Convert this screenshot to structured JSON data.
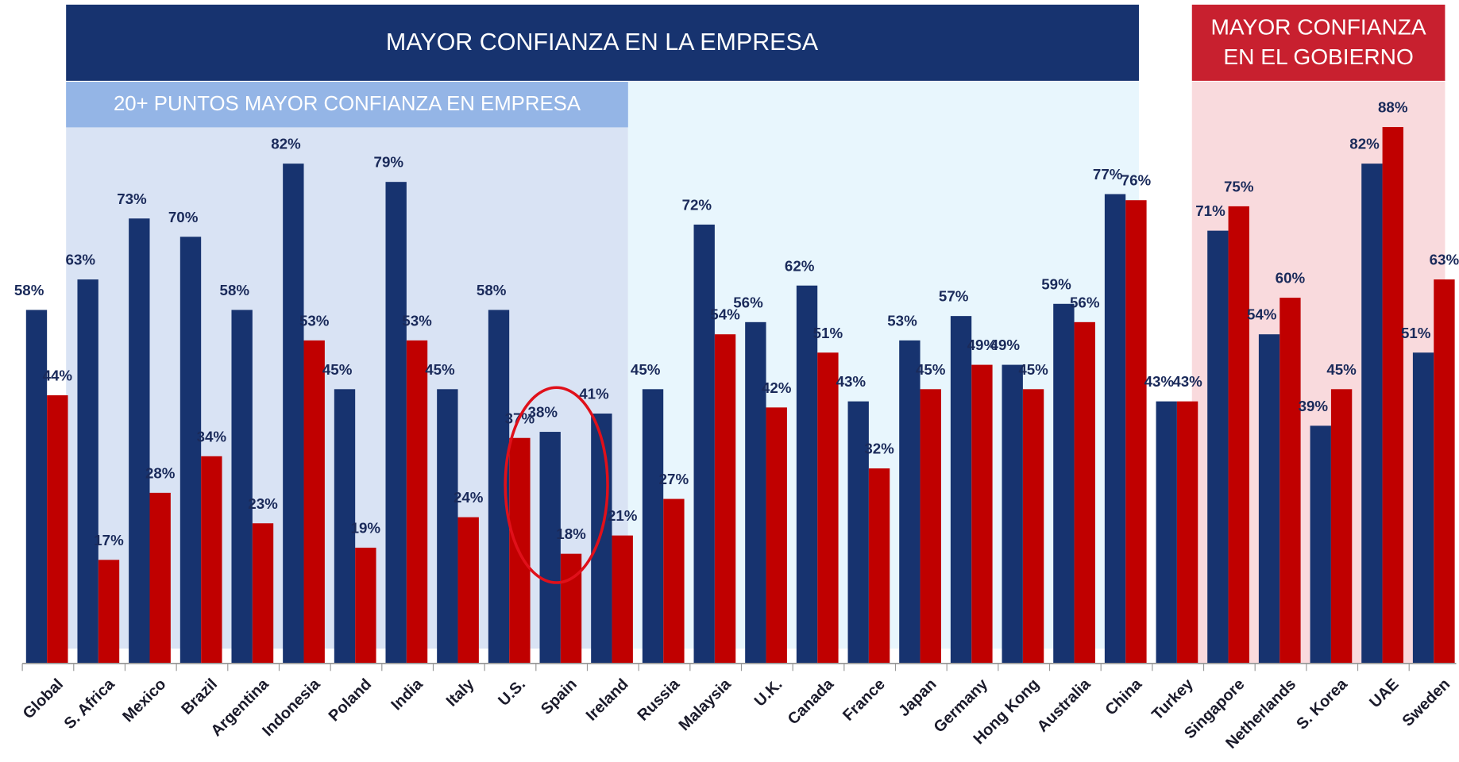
{
  "chart_data": {
    "type": "bar",
    "annotations": {
      "business": "MAYOR CONFIANZA EN LA EMPRESA",
      "business_20": "20+ PUNTOS MAYOR CONFIANZA EN EMPRESA",
      "government": [
        "MAYOR CONFIANZA",
        "EN EL GOBIERNO"
      ]
    },
    "categories": [
      "Global",
      "S. Africa",
      "Mexico",
      "Brazil",
      "Argentina",
      "Indonesia",
      "Poland",
      "India",
      "Italy",
      "U.S.",
      "Spain",
      "Ireland",
      "Russia",
      "Malaysia",
      "U.K.",
      "Canada",
      "France",
      "Japan",
      "Germany",
      "Hong Kong",
      "Australia",
      "China",
      "Turkey",
      "Singapore",
      "Netherlands",
      "S. Korea",
      "UAE",
      "Sweden"
    ],
    "series": [
      {
        "color": "#17336f",
        "values": [
          58,
          63,
          73,
          70,
          58,
          82,
          45,
          79,
          45,
          58,
          38,
          41,
          45,
          72,
          56,
          62,
          43,
          53,
          57,
          49,
          59,
          77,
          43,
          71,
          54,
          39,
          82,
          51
        ],
        "value_labels": [
          "58%",
          "63%",
          "73%",
          "70%",
          "58%",
          "82%",
          "45%",
          "79%",
          "45%",
          "58%",
          "38%",
          "41%",
          "45%",
          "72%",
          "56%",
          "62%",
          "43%",
          "53%",
          "57%",
          "49%",
          "59%",
          "77%",
          "43%",
          "71%",
          "54%",
          "39%",
          "82%",
          "51%"
        ]
      },
      {
        "color": "#c00000",
        "values": [
          44,
          17,
          28,
          34,
          23,
          53,
          19,
          53,
          24,
          37,
          18,
          21,
          27,
          54,
          42,
          51,
          32,
          45,
          49,
          45,
          56,
          76,
          43,
          75,
          60,
          45,
          88,
          63
        ],
        "value_labels": [
          "44%",
          "17%",
          "28%",
          "34%",
          "23%",
          "53%",
          "19%",
          "53%",
          "24%",
          "37%",
          "18%",
          "21%",
          "27%",
          "54%",
          "42%",
          "51%",
          "32%",
          "45%",
          "49%",
          "45%",
          "56%",
          "76%",
          "43%",
          "75%",
          "60%",
          "45%",
          "88%",
          "63%"
        ]
      }
    ],
    "ylim": [
      0,
      100
    ]
  }
}
